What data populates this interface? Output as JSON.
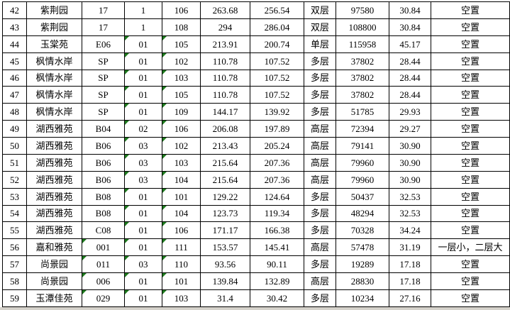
{
  "colors": {
    "grid": "#000000",
    "text": "#000000",
    "background": "#ffffff",
    "flag_green": "#1e7a1e",
    "footer_grey": "#d5d2cb"
  },
  "table": {
    "status_vacant_label": "空置",
    "rows": [
      {
        "cells": [
          "42",
          "紫荆园",
          "17",
          "1",
          "106",
          "263.68",
          "256.54",
          "双层",
          "97580",
          "30.84",
          "空置"
        ],
        "flagged_cols": []
      },
      {
        "cells": [
          "43",
          "紫荆园",
          "17",
          "1",
          "108",
          "294",
          "286.04",
          "双层",
          "108800",
          "30.84",
          "空置"
        ],
        "flagged_cols": []
      },
      {
        "cells": [
          "44",
          "玉棠苑",
          "E06",
          "01",
          "105",
          "213.91",
          "200.74",
          "单层",
          "115958",
          "45.17",
          "空置"
        ],
        "flagged_cols": [
          3,
          4
        ]
      },
      {
        "cells": [
          "45",
          "枫情水岸",
          "SP",
          "01",
          "102",
          "110.78",
          "107.52",
          "多层",
          "37802",
          "28.44",
          "空置"
        ],
        "flagged_cols": [
          3,
          4
        ]
      },
      {
        "cells": [
          "46",
          "枫情水岸",
          "SP",
          "01",
          "103",
          "110.78",
          "107.52",
          "多层",
          "37802",
          "28.44",
          "空置"
        ],
        "flagged_cols": [
          3,
          4
        ]
      },
      {
        "cells": [
          "47",
          "枫情水岸",
          "SP",
          "01",
          "105",
          "110.78",
          "107.52",
          "多层",
          "37802",
          "28.44",
          "空置"
        ],
        "flagged_cols": [
          3,
          4
        ]
      },
      {
        "cells": [
          "48",
          "枫情水岸",
          "SP",
          "01",
          "109",
          "144.17",
          "139.92",
          "多层",
          "51785",
          "29.93",
          "空置"
        ],
        "flagged_cols": [
          3,
          4
        ]
      },
      {
        "cells": [
          "49",
          "湖西雅苑",
          "B04",
          "02",
          "106",
          "206.08",
          "197.89",
          "高层",
          "72394",
          "29.27",
          "空置"
        ],
        "flagged_cols": [
          3,
          4
        ]
      },
      {
        "cells": [
          "50",
          "湖西雅苑",
          "B06",
          "03",
          "102",
          "213.43",
          "205.24",
          "高层",
          "79141",
          "30.90",
          "空置"
        ],
        "flagged_cols": [
          3,
          4
        ]
      },
      {
        "cells": [
          "51",
          "湖西雅苑",
          "B06",
          "03",
          "103",
          "215.64",
          "207.36",
          "高层",
          "79960",
          "30.90",
          "空置"
        ],
        "flagged_cols": [
          3,
          4
        ]
      },
      {
        "cells": [
          "52",
          "湖西雅苑",
          "B06",
          "03",
          "104",
          "215.64",
          "207.36",
          "高层",
          "79960",
          "30.90",
          "空置"
        ],
        "flagged_cols": [
          3,
          4
        ]
      },
      {
        "cells": [
          "53",
          "湖西雅苑",
          "B08",
          "01",
          "101",
          "129.22",
          "124.64",
          "多层",
          "50437",
          "32.53",
          "空置"
        ],
        "flagged_cols": [
          3,
          4
        ]
      },
      {
        "cells": [
          "54",
          "湖西雅苑",
          "B08",
          "01",
          "104",
          "123.73",
          "119.34",
          "多层",
          "48294",
          "32.53",
          "空置"
        ],
        "flagged_cols": [
          3,
          4
        ]
      },
      {
        "cells": [
          "55",
          "湖西雅苑",
          "C08",
          "01",
          "106",
          "171.17",
          "166.38",
          "多层",
          "70328",
          "34.24",
          "空置"
        ],
        "flagged_cols": [
          3,
          4
        ]
      },
      {
        "cells": [
          "56",
          "嘉和雅苑",
          "001",
          "01",
          "111",
          "153.57",
          "145.41",
          "高层",
          "57478",
          "31.19",
          "一层小，二层大"
        ],
        "flagged_cols": [
          2,
          3,
          4
        ]
      },
      {
        "cells": [
          "57",
          "尚景园",
          "011",
          "03",
          "110",
          "93.56",
          "90.11",
          "多层",
          "19289",
          "17.18",
          "空置"
        ],
        "flagged_cols": [
          2,
          3,
          4
        ]
      },
      {
        "cells": [
          "58",
          "尚景园",
          "006",
          "01",
          "101",
          "139.84",
          "132.89",
          "高层",
          "28830",
          "17.18",
          "空置"
        ],
        "flagged_cols": [
          2,
          3,
          4
        ]
      },
      {
        "cells": [
          "59",
          "玉潭佳苑",
          "029",
          "01",
          "103",
          "31.4",
          "30.42",
          "多层",
          "10234",
          "27.16",
          "空置"
        ],
        "flagged_cols": [
          2,
          3,
          4
        ]
      }
    ]
  }
}
